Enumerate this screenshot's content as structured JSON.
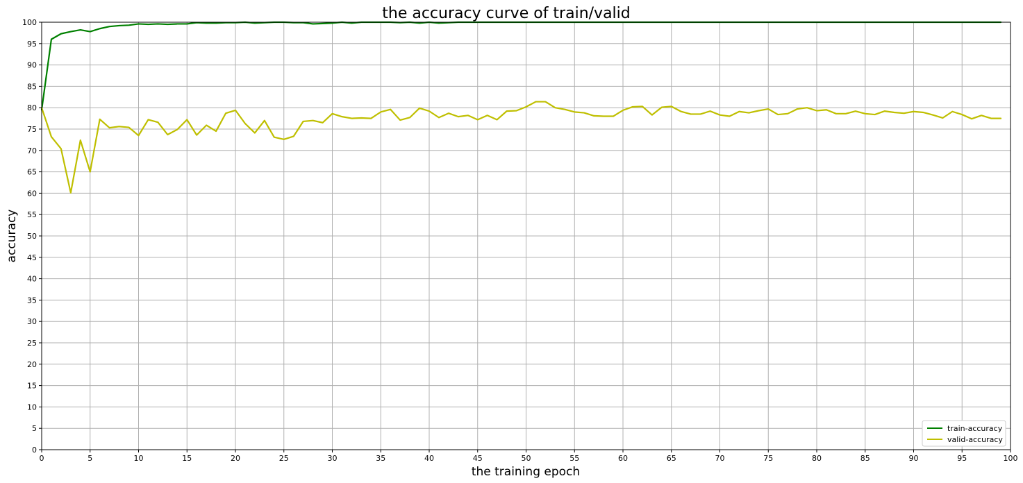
{
  "chart_data": {
    "type": "line",
    "title": "the accuracy curve of train/valid",
    "xlabel": "the training epoch",
    "ylabel": "accuracy",
    "xlim": [
      0,
      100
    ],
    "ylim": [
      0,
      100
    ],
    "xticks": [
      0,
      5,
      10,
      15,
      20,
      25,
      30,
      35,
      40,
      45,
      50,
      55,
      60,
      65,
      70,
      75,
      80,
      85,
      90,
      95,
      100
    ],
    "yticks": [
      0,
      5,
      10,
      15,
      20,
      25,
      30,
      35,
      40,
      45,
      50,
      55,
      60,
      65,
      70,
      75,
      80,
      85,
      90,
      95,
      100
    ],
    "grid": true,
    "legend_position": "bottom-right",
    "x": [
      0,
      1,
      2,
      3,
      4,
      5,
      6,
      7,
      8,
      9,
      10,
      11,
      12,
      13,
      14,
      15,
      16,
      17,
      18,
      19,
      20,
      21,
      22,
      23,
      24,
      25,
      26,
      27,
      28,
      29,
      30,
      31,
      32,
      33,
      34,
      35,
      36,
      37,
      38,
      39,
      40,
      41,
      42,
      43,
      44,
      45,
      46,
      47,
      48,
      49,
      50,
      51,
      52,
      53,
      54,
      55,
      56,
      57,
      58,
      59,
      60,
      61,
      62,
      63,
      64,
      65,
      66,
      67,
      68,
      69,
      70,
      71,
      72,
      73,
      74,
      75,
      76,
      77,
      78,
      79,
      80,
      81,
      82,
      83,
      84,
      85,
      86,
      87,
      88,
      89,
      90,
      91,
      92,
      93,
      94,
      95,
      96,
      97,
      98,
      99
    ],
    "series": [
      {
        "name": "train-accuracy",
        "color": "#008000",
        "values": [
          79.5,
          96.0,
          97.3,
          97.8,
          98.2,
          97.8,
          98.5,
          99.0,
          99.2,
          99.3,
          99.6,
          99.5,
          99.6,
          99.5,
          99.6,
          99.6,
          99.9,
          99.8,
          99.8,
          99.9,
          99.9,
          100,
          99.8,
          99.9,
          100,
          100,
          99.9,
          99.9,
          99.6,
          99.7,
          99.8,
          100,
          99.8,
          100,
          100,
          100,
          100,
          99.9,
          100,
          99.8,
          100,
          99.8,
          99.9,
          100,
          100,
          100,
          100,
          100,
          100,
          100,
          100,
          100,
          100,
          100,
          100,
          100,
          100,
          100,
          100,
          100,
          100,
          100,
          100,
          100,
          100,
          100,
          100,
          100,
          100,
          100,
          100,
          100,
          100,
          100,
          100,
          100,
          100,
          100,
          100,
          100,
          100,
          100,
          100,
          100,
          100,
          100,
          100,
          100,
          100,
          100,
          100,
          100,
          100,
          100,
          100,
          100,
          100,
          100,
          100,
          100
        ]
      },
      {
        "name": "valid-accuracy",
        "color": "#bfbf00",
        "values": [
          80.0,
          73.2,
          70.4,
          60.1,
          72.4,
          65.0,
          77.3,
          75.3,
          75.6,
          75.4,
          73.5,
          77.2,
          76.6,
          73.7,
          74.9,
          77.2,
          73.6,
          75.9,
          74.5,
          78.7,
          79.4,
          76.3,
          74.1,
          77.0,
          73.1,
          72.6,
          73.3,
          76.8,
          77.0,
          76.5,
          78.6,
          77.9,
          77.5,
          77.6,
          77.5,
          79.0,
          79.6,
          77.1,
          77.7,
          79.9,
          79.2,
          77.7,
          78.7,
          77.9,
          78.2,
          77.2,
          78.2,
          77.2,
          79.2,
          79.3,
          80.2,
          81.4,
          81.4,
          80.0,
          79.6,
          79.0,
          78.8,
          78.1,
          78.0,
          78.0,
          79.4,
          80.2,
          80.3,
          78.3,
          80.1,
          80.3,
          79.1,
          78.5,
          78.5,
          79.2,
          78.3,
          78.0,
          79.1,
          78.8,
          79.3,
          79.7,
          78.4,
          78.6,
          79.7,
          80.0,
          79.3,
          79.5,
          78.6,
          78.6,
          79.2,
          78.6,
          78.4,
          79.2,
          78.9,
          78.7,
          79.1,
          78.9,
          78.3,
          77.6,
          79.1,
          78.4,
          77.4,
          78.2,
          77.5,
          77.5
        ]
      }
    ]
  }
}
